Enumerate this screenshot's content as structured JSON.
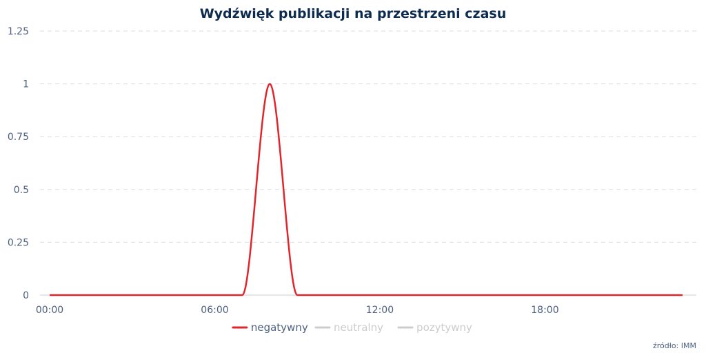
{
  "chart_data": {
    "type": "line",
    "title": "Wydźwięk publikacji na przestrzeni czasu",
    "xlabel": "",
    "ylabel": "",
    "x_tick_labels": [
      "00:00",
      "06:00",
      "12:00",
      "18:00"
    ],
    "y_tick_labels": [
      "0",
      "0.25",
      "0.5",
      "0.75",
      "1",
      "1.25"
    ],
    "xlim": [
      "00:00",
      "23:00"
    ],
    "ylim": [
      0,
      1.25
    ],
    "x": [
      "00:00",
      "01:00",
      "02:00",
      "03:00",
      "04:00",
      "05:00",
      "06:00",
      "07:00",
      "08:00",
      "09:00",
      "10:00",
      "11:00",
      "12:00",
      "13:00",
      "14:00",
      "15:00",
      "16:00",
      "17:00",
      "18:00",
      "19:00",
      "20:00",
      "21:00",
      "22:00",
      "23:00"
    ],
    "series": [
      {
        "name": "negatywny",
        "color": "#e1252b",
        "visible": true,
        "values": [
          0,
          0,
          0,
          0,
          0,
          0,
          0,
          0,
          1,
          0,
          0,
          0,
          0,
          0,
          0,
          0,
          0,
          0,
          0,
          0,
          0,
          0,
          0,
          0
        ]
      },
      {
        "name": "neutralny",
        "color": "#cccccc",
        "visible": false,
        "values": [
          0,
          0,
          0,
          0,
          0,
          0,
          0,
          0,
          0,
          0,
          0,
          0,
          0,
          0,
          0,
          0,
          0,
          0,
          0,
          0,
          0,
          0,
          0,
          0
        ]
      },
      {
        "name": "pozytywny",
        "color": "#cccccc",
        "visible": false,
        "values": [
          0,
          0,
          0,
          0,
          0,
          0,
          0,
          0,
          0,
          0,
          0,
          0,
          0,
          0,
          0,
          0,
          0,
          0,
          0,
          0,
          0,
          0,
          0,
          0
        ]
      }
    ],
    "grid": true,
    "legend_position": "bottom-center"
  },
  "source_text": "źródło: IMM",
  "colors": {
    "title": "#0d2a4f",
    "axis_text": "#4d5f7e",
    "hidden_series": "#cccccc"
  }
}
